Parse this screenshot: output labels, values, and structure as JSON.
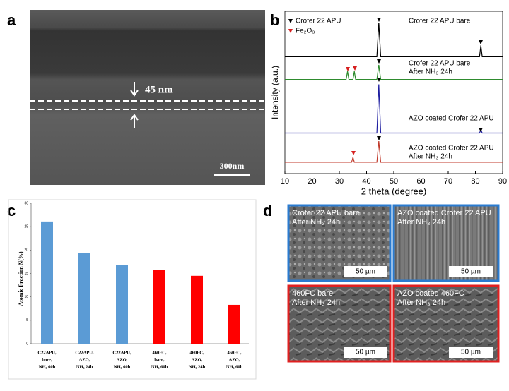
{
  "panel_labels": [
    "a",
    "b",
    "c",
    "d"
  ],
  "sem_image": {
    "annotation": "45 nm",
    "scale_bar": "300nm"
  },
  "chart_data": [
    {
      "type": "line",
      "x_label": "2 theta (degree)",
      "y_label": "Intensity (a.u.)",
      "xlim": [
        10,
        90
      ],
      "xticks": [
        10,
        20,
        30,
        40,
        50,
        60,
        70,
        80,
        90
      ],
      "ylim": [
        0,
        100
      ],
      "legend": [
        {
          "name": "Crofer 22 APU",
          "color": "#000000"
        },
        {
          "name": "Fe₂O₃",
          "color": "#d62020"
        }
      ],
      "series": [
        {
          "name": [
            "Crofer 22 APU bare"
          ],
          "color": "#000000",
          "x": [
            10,
            43.8,
            44.5,
            45.2,
            81.5,
            82,
            82.5,
            90
          ],
          "values": [
            72,
            72,
            93,
            72,
            72,
            79,
            72,
            72
          ]
        },
        {
          "name": [
            "Crofer 22 APU bare",
            "After NH₃ 24h"
          ],
          "color": "#2e8b2e",
          "x": [
            10,
            32.5,
            33,
            33.5,
            35,
            35.5,
            36,
            43.8,
            44.5,
            45.2,
            90
          ],
          "values": [
            58,
            58,
            63,
            58,
            58,
            63,
            58,
            58,
            67,
            58,
            58
          ]
        },
        {
          "name": [
            "AZO coated Crofer 22 APU"
          ],
          "color": "#1f1fa0",
          "x": [
            10,
            43.8,
            44.5,
            45.2,
            81.5,
            82,
            82.5,
            90
          ],
          "values": [
            25,
            25,
            55,
            25,
            25,
            27,
            25,
            25
          ]
        },
        {
          "name": [
            "AZO coated Crofer 22 APU",
            "After NH₃ 24h"
          ],
          "color": "#c0392b",
          "x": [
            10,
            34.5,
            35,
            35.5,
            43.8,
            44.5,
            45.2,
            90
          ],
          "values": [
            7,
            7,
            10,
            7,
            7,
            20,
            7,
            7
          ]
        }
      ]
    },
    {
      "type": "bar",
      "y_label": "Atomic Fraction N(%)",
      "categories": [
        [
          "C22APU,",
          "bare,",
          "NH₃ 60h"
        ],
        [
          "C22APU,",
          "AZO,",
          "NH₃ 24h"
        ],
        [
          "C22APU,",
          "AZO,",
          "NH₃ 60h"
        ],
        [
          "460FC,",
          "bare,",
          "NH₃ 60h"
        ],
        [
          "460FC,",
          "AZO,",
          "NH₃ 24h"
        ],
        [
          "460FC,",
          "AZO,",
          "NH₃ 60h"
        ]
      ],
      "values": [
        26.1,
        19.3,
        16.8,
        15.7,
        14.5,
        8.3
      ],
      "colors": [
        "#5b9bd5",
        "#5b9bd5",
        "#5b9bd5",
        "#ff0000",
        "#ff0000",
        "#ff0000"
      ],
      "ylim": [
        0,
        30
      ],
      "yticks": [
        0,
        5,
        10,
        15,
        20,
        25,
        30
      ]
    }
  ],
  "sem_grid": {
    "tiles": [
      {
        "lines": [
          "Crofer 22 APU bare",
          "After NH₃ 24h"
        ],
        "scale_bar": "50 µm"
      },
      {
        "lines": [
          "AZO coated Crofer 22 APU",
          "After NH₃ 24h"
        ],
        "scale_bar": "50 µm"
      },
      {
        "lines": [
          "460FC bare",
          "After NH₃ 24h"
        ],
        "scale_bar": "50 µm"
      },
      {
        "lines": [
          "AZO coated 460FC",
          "After NH₃ 24h"
        ],
        "scale_bar": "50 µm"
      }
    ]
  }
}
